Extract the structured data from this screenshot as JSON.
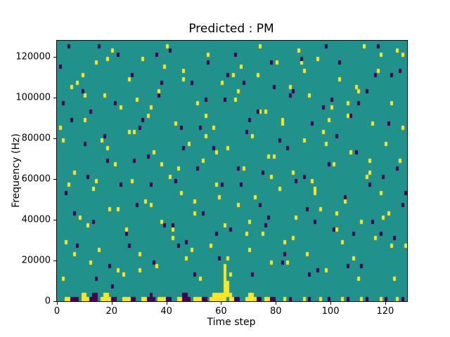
{
  "chart_data": {
    "type": "heatmap",
    "title": "Predicted : PM",
    "xlabel": "Time step",
    "ylabel": "Frequency (Hz)",
    "xlim": [
      0,
      128
    ],
    "ylim": [
      0,
      128000
    ],
    "x_ticks": [
      0,
      20,
      40,
      60,
      80,
      100,
      120
    ],
    "y_ticks": [
      0,
      20000,
      40000,
      60000,
      80000,
      100000,
      120000
    ],
    "grid": {
      "cols": 128,
      "rows": 64,
      "freq_bin_hz": 2000
    },
    "legend": "none",
    "colors": {
      "background": "#21918c",
      "high": "#fde725",
      "low": "#440154"
    },
    "yellow_cells": [
      [
        2,
        5
      ],
      [
        3,
        14
      ],
      [
        5,
        52
      ],
      [
        6,
        31
      ],
      [
        8,
        20
      ],
      [
        9,
        55
      ],
      [
        10,
        44
      ],
      [
        12,
        9
      ],
      [
        13,
        27
      ],
      [
        14,
        58
      ],
      [
        15,
        12
      ],
      [
        16,
        39
      ],
      [
        17,
        50
      ],
      [
        19,
        22
      ],
      [
        20,
        61
      ],
      [
        21,
        33
      ],
      [
        22,
        7
      ],
      [
        23,
        47
      ],
      [
        25,
        17
      ],
      [
        26,
        54
      ],
      [
        27,
        29
      ],
      [
        28,
        41
      ],
      [
        30,
        11
      ],
      [
        31,
        59
      ],
      [
        32,
        24
      ],
      [
        33,
        45
      ],
      [
        35,
        36
      ],
      [
        36,
        8
      ],
      [
        37,
        51
      ],
      [
        38,
        19
      ],
      [
        40,
        62
      ],
      [
        41,
        30
      ],
      [
        42,
        15
      ],
      [
        43,
        43
      ],
      [
        45,
        26
      ],
      [
        46,
        56
      ],
      [
        47,
        10
      ],
      [
        48,
        38
      ],
      [
        50,
        21
      ],
      [
        51,
        48
      ],
      [
        52,
        5
      ],
      [
        53,
        34
      ],
      [
        55,
        60
      ],
      [
        56,
        13
      ],
      [
        57,
        42
      ],
      [
        58,
        28
      ],
      [
        60,
        53
      ],
      [
        61,
        18
      ],
      [
        62,
        37
      ],
      [
        63,
        6
      ],
      [
        65,
        49
      ],
      [
        66,
        23
      ],
      [
        67,
        57
      ],
      [
        68,
        32
      ],
      [
        70,
        12
      ],
      [
        71,
        40
      ],
      [
        72,
        25
      ],
      [
        73,
        55
      ],
      [
        75,
        16
      ],
      [
        76,
        46
      ],
      [
        77,
        35
      ],
      [
        78,
        9
      ],
      [
        80,
        58
      ],
      [
        81,
        27
      ],
      [
        82,
        44
      ],
      [
        83,
        14
      ],
      [
        85,
        52
      ],
      [
        86,
        31
      ],
      [
        87,
        20
      ],
      [
        88,
        61
      ],
      [
        90,
        39
      ],
      [
        91,
        11
      ],
      [
        92,
        50
      ],
      [
        93,
        29
      ],
      [
        95,
        59
      ],
      [
        96,
        22
      ],
      [
        97,
        41
      ],
      [
        98,
        7
      ],
      [
        100,
        47
      ],
      [
        101,
        33
      ],
      [
        102,
        17
      ],
      [
        103,
        54
      ],
      [
        105,
        24
      ],
      [
        106,
        45
      ],
      [
        107,
        36
      ],
      [
        108,
        10
      ],
      [
        110,
        51
      ],
      [
        111,
        19
      ],
      [
        112,
        62
      ],
      [
        113,
        30
      ],
      [
        115,
        43
      ],
      [
        116,
        15
      ],
      [
        117,
        56
      ],
      [
        118,
        26
      ],
      [
        120,
        38
      ],
      [
        121,
        21
      ],
      [
        122,
        48
      ],
      [
        123,
        5
      ],
      [
        125,
        34
      ],
      [
        126,
        60
      ],
      [
        127,
        13
      ],
      [
        1,
        42
      ],
      [
        4,
        28
      ],
      [
        7,
        53
      ],
      [
        11,
        18
      ],
      [
        18,
        37
      ],
      [
        24,
        6
      ],
      [
        29,
        49
      ],
      [
        34,
        23
      ],
      [
        39,
        57
      ],
      [
        44,
        32
      ],
      [
        49,
        12
      ],
      [
        54,
        40
      ],
      [
        59,
        25
      ],
      [
        64,
        55
      ],
      [
        69,
        16
      ],
      [
        74,
        46
      ],
      [
        79,
        35
      ],
      [
        84,
        9
      ],
      [
        89,
        58
      ],
      [
        94,
        27
      ],
      [
        99,
        44
      ],
      [
        104,
        14
      ],
      [
        109,
        52
      ],
      [
        114,
        31
      ],
      [
        119,
        20
      ],
      [
        124,
        61
      ],
      [
        2,
        39
      ],
      [
        6,
        11
      ],
      [
        10,
        50
      ],
      [
        14,
        29
      ],
      [
        18,
        59
      ],
      [
        22,
        22
      ],
      [
        26,
        41
      ],
      [
        30,
        7
      ],
      [
        34,
        47
      ],
      [
        38,
        33
      ],
      [
        42,
        17
      ],
      [
        46,
        54
      ],
      [
        50,
        24
      ],
      [
        54,
        45
      ],
      [
        58,
        36
      ],
      [
        62,
        10
      ],
      [
        66,
        51
      ],
      [
        70,
        19
      ],
      [
        74,
        62
      ],
      [
        78,
        30
      ],
      [
        82,
        43
      ],
      [
        86,
        15
      ],
      [
        90,
        56
      ],
      [
        94,
        26
      ],
      [
        98,
        38
      ],
      [
        102,
        21
      ],
      [
        106,
        48
      ],
      [
        110,
        5
      ],
      [
        114,
        34
      ],
      [
        118,
        60
      ],
      [
        122,
        13
      ],
      [
        126,
        42
      ],
      [
        61,
        0
      ],
      [
        61,
        1
      ],
      [
        61,
        2
      ],
      [
        61,
        3
      ],
      [
        61,
        4
      ],
      [
        61,
        5
      ],
      [
        61,
        6
      ],
      [
        61,
        7
      ],
      [
        61,
        8
      ],
      [
        62,
        1
      ],
      [
        62,
        2
      ],
      [
        62,
        3
      ],
      [
        62,
        4
      ],
      [
        3,
        0
      ],
      [
        4,
        0
      ],
      [
        9,
        0
      ],
      [
        10,
        0
      ],
      [
        11,
        0
      ],
      [
        16,
        0
      ],
      [
        17,
        0
      ],
      [
        18,
        0
      ],
      [
        19,
        0
      ],
      [
        24,
        0
      ],
      [
        25,
        0
      ],
      [
        26,
        0
      ],
      [
        31,
        0
      ],
      [
        32,
        0
      ],
      [
        37,
        0
      ],
      [
        38,
        0
      ],
      [
        39,
        0
      ],
      [
        44,
        0
      ],
      [
        45,
        0
      ],
      [
        50,
        0
      ],
      [
        51,
        0
      ],
      [
        52,
        0
      ],
      [
        56,
        0
      ],
      [
        57,
        0
      ],
      [
        58,
        0
      ],
      [
        59,
        0
      ],
      [
        60,
        0
      ],
      [
        63,
        0
      ],
      [
        64,
        0
      ],
      [
        69,
        0
      ],
      [
        70,
        0
      ],
      [
        71,
        0
      ],
      [
        72,
        0
      ],
      [
        76,
        0
      ],
      [
        77,
        0
      ],
      [
        83,
        0
      ],
      [
        90,
        0
      ],
      [
        96,
        0
      ],
      [
        104,
        0
      ],
      [
        111,
        0
      ],
      [
        118,
        0
      ],
      [
        124,
        0
      ],
      [
        9,
        1
      ],
      [
        10,
        1
      ],
      [
        17,
        1
      ],
      [
        18,
        1
      ],
      [
        57,
        1
      ],
      [
        58,
        1
      ],
      [
        59,
        1
      ],
      [
        60,
        1
      ],
      [
        63,
        1
      ],
      [
        70,
        1
      ],
      [
        71,
        1
      ]
    ],
    "purple_cells": [
      [
        1,
        57
      ],
      [
        3,
        26
      ],
      [
        5,
        44
      ],
      [
        7,
        13
      ],
      [
        9,
        51
      ],
      [
        11,
        30
      ],
      [
        13,
        19
      ],
      [
        15,
        62
      ],
      [
        17,
        40
      ],
      [
        19,
        8
      ],
      [
        21,
        48
      ],
      [
        23,
        28
      ],
      [
        25,
        16
      ],
      [
        27,
        55
      ],
      [
        29,
        23
      ],
      [
        31,
        44
      ],
      [
        33,
        35
      ],
      [
        35,
        9
      ],
      [
        37,
        50
      ],
      [
        39,
        18
      ],
      [
        41,
        61
      ],
      [
        43,
        29
      ],
      [
        45,
        42
      ],
      [
        47,
        14
      ],
      [
        49,
        53
      ],
      [
        51,
        32
      ],
      [
        53,
        21
      ],
      [
        55,
        58
      ],
      [
        57,
        37
      ],
      [
        59,
        10
      ],
      [
        61,
        49
      ],
      [
        63,
        17
      ],
      [
        65,
        60
      ],
      [
        67,
        28
      ],
      [
        69,
        41
      ],
      [
        71,
        6
      ],
      [
        73,
        46
      ],
      [
        75,
        31
      ],
      [
        77,
        20
      ],
      [
        79,
        52
      ],
      [
        81,
        39
      ],
      [
        83,
        11
      ],
      [
        85,
        50
      ],
      [
        87,
        29
      ],
      [
        89,
        59
      ],
      [
        91,
        22
      ],
      [
        93,
        43
      ],
      [
        95,
        7
      ],
      [
        97,
        47
      ],
      [
        99,
        33
      ],
      [
        101,
        17
      ],
      [
        103,
        58
      ],
      [
        105,
        25
      ],
      [
        107,
        45
      ],
      [
        109,
        36
      ],
      [
        111,
        8
      ],
      [
        113,
        51
      ],
      [
        115,
        19
      ],
      [
        117,
        62
      ],
      [
        119,
        30
      ],
      [
        121,
        43
      ],
      [
        123,
        15
      ],
      [
        125,
        56
      ],
      [
        127,
        26
      ],
      [
        2,
        48
      ],
      [
        6,
        21
      ],
      [
        10,
        38
      ],
      [
        14,
        5
      ],
      [
        18,
        34
      ],
      [
        22,
        60
      ],
      [
        26,
        13
      ],
      [
        30,
        42
      ],
      [
        34,
        28
      ],
      [
        38,
        53
      ],
      [
        42,
        18
      ],
      [
        46,
        37
      ],
      [
        50,
        6
      ],
      [
        54,
        49
      ],
      [
        58,
        16
      ],
      [
        62,
        55
      ],
      [
        66,
        32
      ],
      [
        70,
        44
      ],
      [
        74,
        23
      ],
      [
        78,
        58
      ],
      [
        82,
        9
      ],
      [
        86,
        51
      ],
      [
        90,
        30
      ],
      [
        94,
        19
      ],
      [
        98,
        62
      ],
      [
        102,
        40
      ],
      [
        106,
        8
      ],
      [
        110,
        48
      ],
      [
        114,
        28
      ],
      [
        118,
        16
      ],
      [
        122,
        55
      ],
      [
        126,
        23
      ],
      [
        4,
        62
      ],
      [
        12,
        46
      ],
      [
        20,
        3
      ],
      [
        28,
        34
      ],
      [
        36,
        60
      ],
      [
        44,
        13
      ],
      [
        52,
        42
      ],
      [
        60,
        28
      ],
      [
        68,
        53
      ],
      [
        76,
        18
      ],
      [
        84,
        37
      ],
      [
        92,
        6
      ],
      [
        100,
        49
      ],
      [
        108,
        16
      ],
      [
        116,
        55
      ],
      [
        124,
        32
      ],
      [
        5,
        0
      ],
      [
        6,
        0
      ],
      [
        7,
        0
      ],
      [
        12,
        0
      ],
      [
        13,
        0
      ],
      [
        14,
        0
      ],
      [
        20,
        0
      ],
      [
        21,
        0
      ],
      [
        27,
        0
      ],
      [
        28,
        0
      ],
      [
        33,
        0
      ],
      [
        34,
        0
      ],
      [
        35,
        0
      ],
      [
        40,
        0
      ],
      [
        41,
        0
      ],
      [
        46,
        0
      ],
      [
        47,
        0
      ],
      [
        48,
        0
      ],
      [
        53,
        0
      ],
      [
        54,
        0
      ],
      [
        65,
        0
      ],
      [
        66,
        0
      ],
      [
        73,
        0
      ],
      [
        74,
        0
      ],
      [
        78,
        0
      ],
      [
        79,
        0
      ],
      [
        85,
        0
      ],
      [
        92,
        0
      ],
      [
        99,
        0
      ],
      [
        106,
        0
      ],
      [
        113,
        0
      ],
      [
        120,
        0
      ],
      [
        126,
        0
      ],
      [
        13,
        1
      ],
      [
        14,
        1
      ],
      [
        34,
        1
      ],
      [
        46,
        1
      ],
      [
        47,
        1
      ]
    ]
  }
}
